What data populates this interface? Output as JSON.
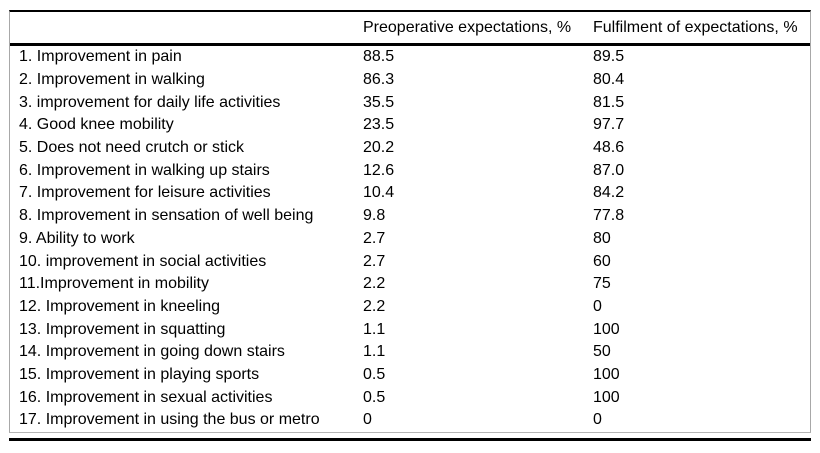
{
  "table": {
    "columns": {
      "label": "",
      "preop": "Preoperative expectations, %",
      "fulfil": "Fulfilment of expectations, %"
    },
    "rows": [
      {
        "label": "1. Improvement in pain",
        "preop": "88.5",
        "fulfil": "89.5"
      },
      {
        "label": "2. Improvement in walking",
        "preop": "86.3",
        "fulfil": "80.4"
      },
      {
        "label": "3. improvement for daily life activities",
        "preop": "35.5",
        "fulfil": "81.5"
      },
      {
        "label": "4. Good knee mobility",
        "preop": "23.5",
        "fulfil": "97.7"
      },
      {
        "label": "5. Does not need crutch or stick",
        "preop": "20.2",
        "fulfil": "48.6"
      },
      {
        "label": "6. Improvement in walking up stairs",
        "preop": "12.6",
        "fulfil": "87.0"
      },
      {
        "label": "7. Improvement for leisure activities",
        "preop": "10.4",
        "fulfil": "84.2"
      },
      {
        "label": "8. Improvement in sensation of well being",
        "preop": "9.8",
        "fulfil": "77.8"
      },
      {
        "label": "9. Ability to work",
        "preop": "2.7",
        "fulfil": "80"
      },
      {
        "label": "10. improvement in social activities",
        "preop": "2.7",
        "fulfil": "60"
      },
      {
        "label": "11.Improvement in mobility",
        "preop": "2.2",
        "fulfil": "75"
      },
      {
        "label": "12. Improvement in kneeling",
        "preop": "2.2",
        "fulfil": "0"
      },
      {
        "label": "13. Improvement in squatting",
        "preop": "1.1",
        "fulfil": "100"
      },
      {
        "label": "14. Improvement in going down stairs",
        "preop": "1.1",
        "fulfil": "50"
      },
      {
        "label": "15. Improvement in playing sports",
        "preop": "0.5",
        "fulfil": "100"
      },
      {
        "label": "16. Improvement in sexual activities",
        "preop": "0.5",
        "fulfil": "100"
      },
      {
        "label": "17. Improvement in using the bus or metro",
        "preop": "0",
        "fulfil": "0"
      }
    ],
    "colors": {
      "rule": "#000000",
      "side_border": "#a8a8a8",
      "text": "#000000",
      "background": "#ffffff"
    }
  }
}
